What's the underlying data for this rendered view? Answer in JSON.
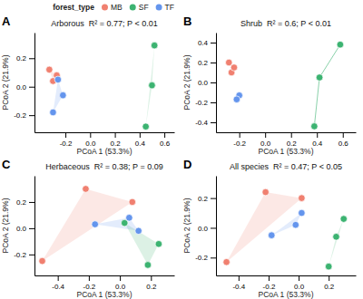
{
  "chart_data": [
    {
      "type": "scatter",
      "title": "Arborous  R² = 0.77; P < 0.01",
      "annotations": [
        "A"
      ],
      "xlabel": "PCoA 1 (53.3%)",
      "ylabel": "PCoA 2 (21.9%)",
      "xlim": [
        -0.45,
        0.68
      ],
      "ylim": [
        -0.32,
        0.38
      ],
      "xticks": [
        -0.2,
        {
          "value": 0.0,
          "label": "0.0"
        },
        0.2,
        0.4,
        0.6
      ],
      "yticks": [
        -0.2,
        {
          "value": 0.0,
          "label": "0.0"
        },
        0.2
      ],
      "legend": "upper right",
      "legend_title": "forest_type",
      "series": [
        {
          "name": "MB",
          "color": "#f08070",
          "type": "hull",
          "x": [
            -0.33,
            -0.3,
            -0.27
          ],
          "values": [
            0.12,
            0.04,
            0.08
          ]
        },
        {
          "name": "SF",
          "color": "#3cb371",
          "type": "hull",
          "x": [
            0.45,
            0.5,
            0.52
          ],
          "values": [
            -0.28,
            0.01,
            0.29
          ]
        },
        {
          "name": "TF",
          "color": "#6495ed",
          "type": "hull",
          "x": [
            -0.26,
            -0.22,
            -0.3
          ],
          "values": [
            0.05,
            -0.06,
            -0.18
          ]
        }
      ]
    },
    {
      "type": "scatter",
      "title": "Shrub  R² = 0.6; P < 0.01",
      "annotations": [
        "B"
      ],
      "xlabel": "PCoA 1 (53.3%)",
      "ylabel": "PCoA 2 (21.9%)",
      "xlim": [
        -0.38,
        0.7
      ],
      "ylim": [
        -0.5,
        0.5
      ],
      "xticks": [
        -0.2,
        {
          "value": 0.0,
          "label": "0.0"
        },
        0.2,
        0.4,
        0.6
      ],
      "yticks": [
        -0.4,
        -0.2,
        {
          "value": 0.0,
          "label": "0.0"
        },
        0.2,
        0.4
      ],
      "series": [
        {
          "name": "MB",
          "color": "#f08070",
          "x": [
            -0.28,
            -0.26,
            -0.24
          ],
          "values": [
            0.2,
            0.1,
            0.15
          ]
        },
        {
          "name": "SF",
          "color": "#3cb371",
          "line_style": "solid",
          "x": [
            0.38,
            0.42,
            0.58
          ],
          "values": [
            -0.44,
            0.05,
            0.38
          ]
        },
        {
          "name": "TF",
          "color": "#6495ed",
          "x": [
            -0.2,
            -0.22
          ],
          "values": [
            -0.13,
            -0.17
          ]
        }
      ]
    },
    {
      "type": "scatter",
      "title": "Herbaceous  R² = 0.38; P = 0.09",
      "annotations": [
        "C"
      ],
      "xlabel": "PCoA 1 (53.3%)",
      "ylabel": "PCoA 2 (21.9%)",
      "xlim": [
        -0.55,
        0.35
      ],
      "ylim": [
        -0.36,
        0.4
      ],
      "xticks": [
        -0.4,
        -0.2,
        {
          "value": 0.0,
          "label": "0.0"
        },
        0.2
      ],
      "yticks": [
        -0.2,
        {
          "value": 0.0,
          "label": "0.0"
        },
        0.2
      ],
      "series": [
        {
          "name": "MB",
          "color": "#f08070",
          "type": "hull",
          "x": [
            -0.5,
            -0.22,
            0.08
          ],
          "values": [
            -0.25,
            0.3,
            0.2
          ]
        },
        {
          "name": "SF",
          "color": "#3cb371",
          "type": "hull",
          "x": [
            0.03,
            0.18,
            0.25
          ],
          "values": [
            0.04,
            -0.28,
            -0.12
          ]
        },
        {
          "name": "TF",
          "color": "#6495ed",
          "type": "hull",
          "x": [
            -0.16,
            0.06,
            0.12
          ],
          "values": [
            0.03,
            0.08,
            -0.02
          ]
        }
      ]
    },
    {
      "type": "scatter",
      "title": "All species  R² = 0.47; P < 0.05",
      "annotations": [
        "D"
      ],
      "xlabel": "PCoA 1 (53.3%)",
      "ylabel": "PCoA 2 (21.9%)",
      "xlim": [
        -0.55,
        0.38
      ],
      "ylim": [
        -0.32,
        0.35
      ],
      "xticks": [
        -0.4,
        -0.2,
        {
          "value": 0.0,
          "label": "0.0"
        },
        0.2
      ],
      "yticks": [
        -0.2,
        {
          "value": 0.0,
          "label": "0.0"
        },
        0.2
      ],
      "series": [
        {
          "name": "MB",
          "color": "#f08070",
          "type": "hull",
          "x": [
            -0.48,
            -0.22,
            0.02
          ],
          "values": [
            -0.23,
            0.24,
            0.2
          ]
        },
        {
          "name": "SF",
          "color": "#3cb371",
          "type": "hull",
          "x": [
            0.2,
            0.25,
            0.3
          ],
          "values": [
            -0.26,
            -0.06,
            0.06
          ]
        },
        {
          "name": "TF",
          "color": "#6495ed",
          "type": "hull",
          "x": [
            -0.18,
            -0.02,
            0.02
          ],
          "values": [
            -0.05,
            0.02,
            0.1
          ]
        }
      ]
    }
  ]
}
